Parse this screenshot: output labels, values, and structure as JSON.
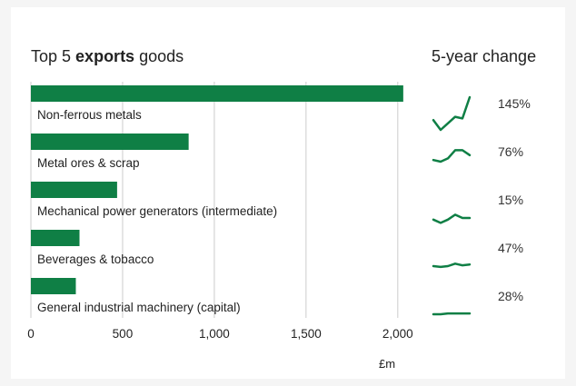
{
  "chart_data": {
    "type": "bar",
    "orientation": "horizontal",
    "title_parts": [
      {
        "text": "Top 5 ",
        "bold": false
      },
      {
        "text": "exports",
        "bold": true
      },
      {
        "text": " goods",
        "bold": false
      }
    ],
    "side_title": "5-year change",
    "categories": [
      "Non-ferrous metals",
      "Metal ores & scrap",
      "Mechanical power generators (intermediate)",
      "Beverages & tobacco",
      "General industrial machinery (capital)"
    ],
    "values": [
      2030,
      860,
      470,
      265,
      245
    ],
    "xlim": [
      0,
      2100
    ],
    "xticks": [
      0,
      500,
      1000,
      1500,
      2000
    ],
    "xtick_labels": [
      "0",
      "500",
      "1,000",
      "1,500",
      "2,000"
    ],
    "xlabel": "£m",
    "grid": "vertical",
    "color": "#0f7f45",
    "five_year_change_labels": [
      "145%",
      "76%",
      "15%",
      "47%",
      "28%"
    ],
    "sparklines": [
      [
        52,
        40,
        48,
        56,
        54,
        80
      ],
      [
        62,
        60,
        64,
        74,
        74,
        68
      ],
      [
        48,
        44,
        48,
        54,
        50,
        50
      ],
      [
        50,
        49,
        50,
        53,
        51,
        52
      ],
      [
        50,
        50,
        51,
        51,
        51,
        51
      ]
    ]
  }
}
